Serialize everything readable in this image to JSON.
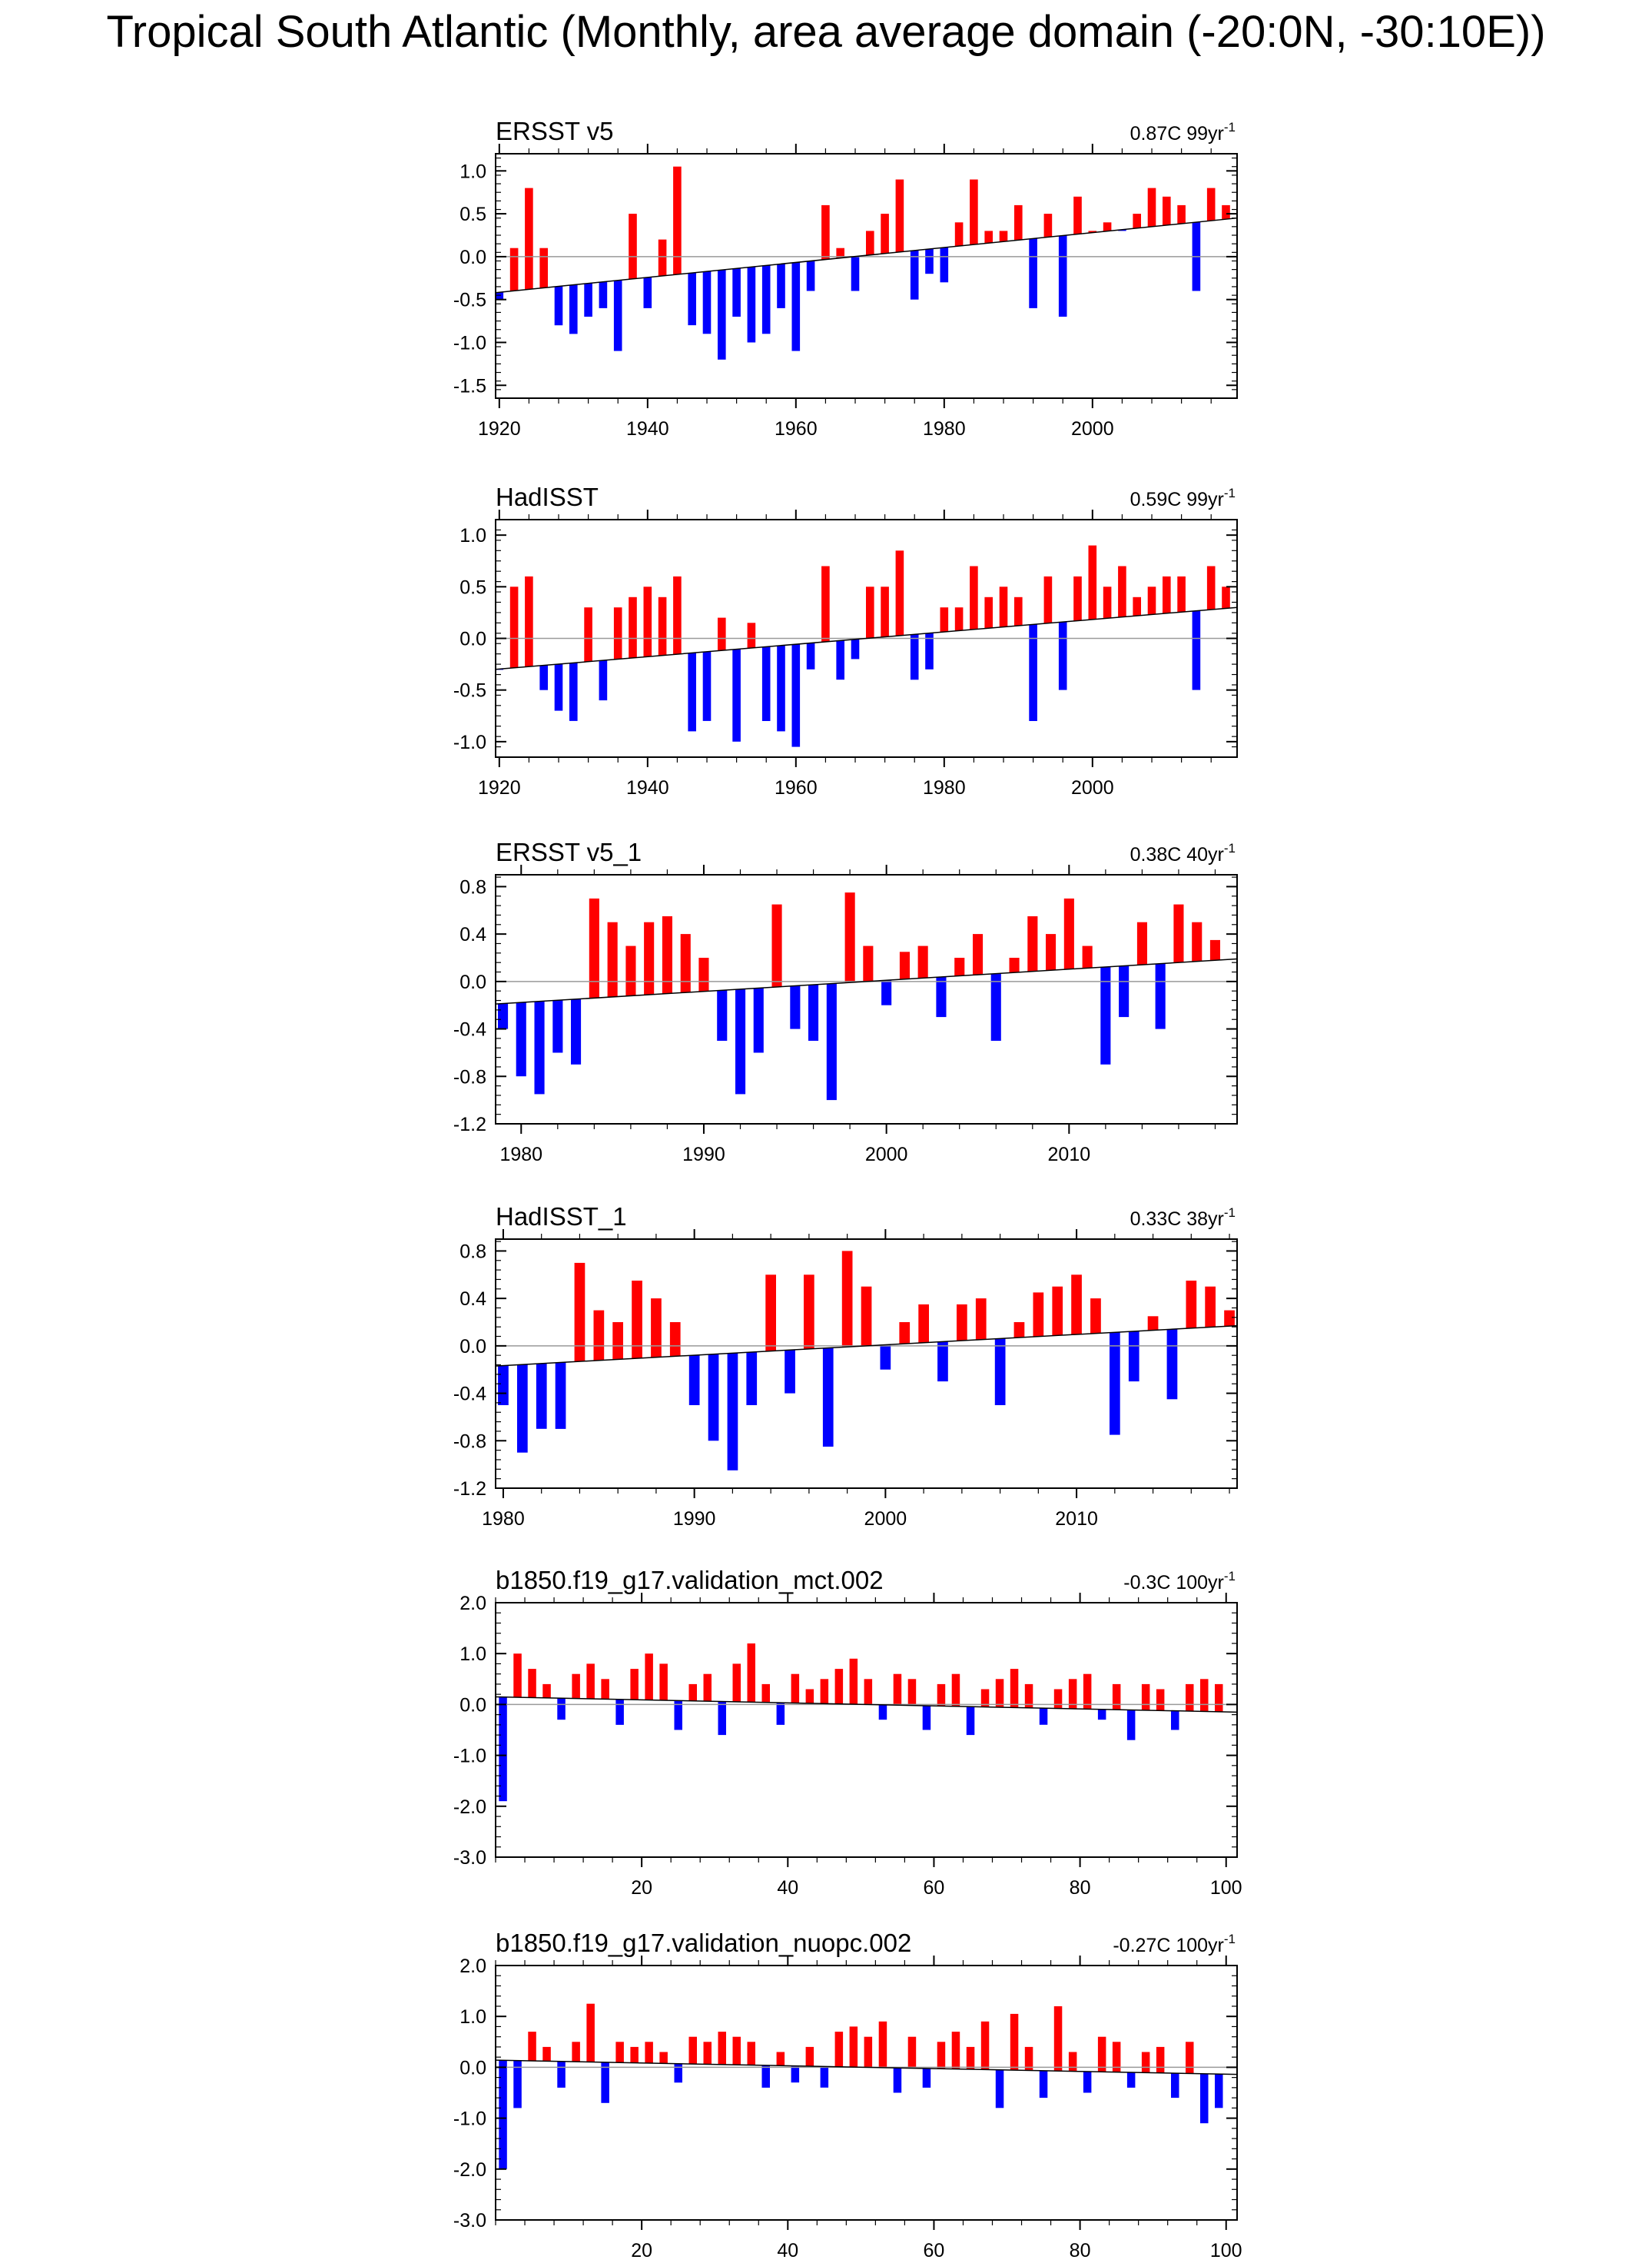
{
  "title": "Tropical South Atlantic (Monthly, area average domain (-20:0N, -30:10E))",
  "colors": {
    "positive": "#ff0000",
    "negative": "#0000ff",
    "trend": "#000000",
    "zero_line": "#9a9a9a"
  },
  "chart_data": [
    {
      "type": "bar",
      "title": "ERSST v5",
      "trend_label": "0.87C 99yr",
      "trend_label_sup": "-1",
      "xlim": [
        1919.5,
        2019.5
      ],
      "ylim": [
        -1.65,
        1.2
      ],
      "xticks": [
        1920,
        1940,
        1960,
        1980,
        2000
      ],
      "xtick_labels": [
        "1920",
        "1940",
        "1960",
        "1980",
        "2000"
      ],
      "yticks": [
        1.0,
        0.5,
        0.0,
        -0.5,
        -1.0,
        -1.5
      ],
      "ytick_labels": [
        "1.0",
        "0.5",
        "0.0",
        "-0.5",
        "-1.0",
        "-1.5"
      ],
      "trend_line": {
        "start": -0.42,
        "end": 0.45
      },
      "x": [
        1920,
        1922,
        1924,
        1926,
        1928,
        1930,
        1932,
        1934,
        1936,
        1938,
        1940,
        1942,
        1944,
        1946,
        1948,
        1950,
        1952,
        1954,
        1956,
        1958,
        1960,
        1962,
        1964,
        1966,
        1968,
        1970,
        1972,
        1974,
        1976,
        1978,
        1980,
        1982,
        1984,
        1986,
        1988,
        1990,
        1992,
        1994,
        1996,
        1998,
        2000,
        2002,
        2004,
        2006,
        2008,
        2010,
        2012,
        2014,
        2016,
        2018
      ],
      "values": [
        -0.5,
        0.1,
        0.8,
        0.1,
        -0.8,
        -0.9,
        -0.7,
        -0.6,
        -1.1,
        0.5,
        -0.6,
        0.2,
        1.05,
        -0.8,
        -0.9,
        -1.2,
        -0.7,
        -1.0,
        -0.9,
        -0.6,
        -1.1,
        -0.4,
        0.6,
        0.1,
        -0.4,
        0.3,
        0.5,
        0.9,
        -0.5,
        -0.2,
        -0.3,
        0.4,
        0.9,
        0.3,
        0.3,
        0.6,
        -0.6,
        0.5,
        -0.7,
        0.7,
        0.3,
        0.4,
        0.3,
        0.5,
        0.8,
        0.7,
        0.6,
        -0.4,
        0.8,
        0.6
      ]
    },
    {
      "type": "bar",
      "title": "HadISST",
      "trend_label": "0.59C 99yr",
      "trend_label_sup": "-1",
      "xlim": [
        1919.5,
        2019.5
      ],
      "ylim": [
        -1.15,
        1.15
      ],
      "xticks": [
        1920,
        1940,
        1960,
        1980,
        2000
      ],
      "xtick_labels": [
        "1920",
        "1940",
        "1960",
        "1980",
        "2000"
      ],
      "yticks": [
        1.0,
        0.5,
        0.0,
        -0.5,
        -1.0
      ],
      "ytick_labels": [
        "1.0",
        "0.5",
        "0.0",
        "-0.5",
        "-1.0"
      ],
      "trend_line": {
        "start": -0.3,
        "end": 0.3
      },
      "x": [
        1920,
        1922,
        1924,
        1926,
        1928,
        1930,
        1932,
        1934,
        1936,
        1938,
        1940,
        1942,
        1944,
        1946,
        1948,
        1950,
        1952,
        1954,
        1956,
        1958,
        1960,
        1962,
        1964,
        1966,
        1968,
        1970,
        1972,
        1974,
        1976,
        1978,
        1980,
        1982,
        1984,
        1986,
        1988,
        1990,
        1992,
        1994,
        1996,
        1998,
        2000,
        2002,
        2004,
        2006,
        2008,
        2010,
        2012,
        2014,
        2016,
        2018
      ],
      "values": [
        -0.3,
        0.5,
        0.6,
        -0.5,
        -0.7,
        -0.8,
        0.3,
        -0.6,
        0.3,
        0.4,
        0.5,
        0.4,
        0.6,
        -0.9,
        -0.8,
        0.2,
        -1.0,
        0.15,
        -0.8,
        -0.9,
        -1.05,
        -0.3,
        0.7,
        -0.4,
        -0.2,
        0.5,
        0.5,
        0.85,
        -0.4,
        -0.3,
        0.3,
        0.3,
        0.7,
        0.4,
        0.5,
        0.4,
        -0.8,
        0.6,
        -0.5,
        0.6,
        0.9,
        0.5,
        0.7,
        0.4,
        0.5,
        0.6,
        0.6,
        -0.5,
        0.7,
        0.5
      ]
    },
    {
      "type": "bar",
      "title": "ERSST v5_1",
      "trend_label": "0.38C 40yr",
      "trend_label_sup": "-1",
      "xlim": [
        1978.6,
        2019.2
      ],
      "ylim": [
        -1.2,
        0.9
      ],
      "xticks": [
        1980,
        1990,
        2000,
        2010
      ],
      "xtick_labels": [
        "1980",
        "1990",
        "2000",
        "2010"
      ],
      "yticks": [
        0.8,
        0.4,
        0.0,
        -0.4,
        -0.8,
        -1.2
      ],
      "ytick_labels": [
        "0.8",
        "0.4",
        "0.0",
        "-0.4",
        "-0.8",
        "-1.2"
      ],
      "trend_line": {
        "start": -0.19,
        "end": 0.19
      },
      "x": [
        1979,
        1980,
        1981,
        1982,
        1983,
        1984,
        1985,
        1986,
        1987,
        1988,
        1989,
        1990,
        1991,
        1992,
        1993,
        1994,
        1995,
        1996,
        1997,
        1998,
        1999,
        2000,
        2001,
        2002,
        2003,
        2004,
        2005,
        2006,
        2007,
        2008,
        2009,
        2010,
        2011,
        2012,
        2013,
        2014,
        2015,
        2016,
        2017,
        2018
      ],
      "values": [
        -0.4,
        -0.8,
        -0.95,
        -0.6,
        -0.7,
        0.7,
        0.5,
        0.3,
        0.5,
        0.55,
        0.4,
        0.2,
        -0.5,
        -0.95,
        -0.6,
        0.65,
        -0.4,
        -0.5,
        -1.0,
        0.75,
        0.3,
        -0.2,
        0.25,
        0.3,
        -0.3,
        0.2,
        0.4,
        -0.5,
        0.2,
        0.55,
        0.4,
        0.7,
        0.3,
        -0.7,
        -0.3,
        0.5,
        -0.4,
        0.65,
        0.5,
        0.35
      ]
    },
    {
      "type": "bar",
      "title": "HadISST_1",
      "trend_label": "0.33C 38yr",
      "trend_label_sup": "-1",
      "xlim": [
        1979.6,
        2018.4
      ],
      "ylim": [
        -1.2,
        0.9
      ],
      "xticks": [
        1980,
        1990,
        2000,
        2010
      ],
      "xtick_labels": [
        "1980",
        "1990",
        "2000",
        "2010"
      ],
      "yticks": [
        0.8,
        0.4,
        0.0,
        -0.4,
        -0.8,
        -1.2
      ],
      "ytick_labels": [
        "0.8",
        "0.4",
        "0.0",
        "-0.4",
        "-0.8",
        "-1.2"
      ],
      "trend_line": {
        "start": -0.17,
        "end": 0.17
      },
      "x": [
        1980,
        1981,
        1982,
        1983,
        1984,
        1985,
        1986,
        1987,
        1988,
        1989,
        1990,
        1991,
        1992,
        1993,
        1994,
        1995,
        1996,
        1997,
        1998,
        1999,
        2000,
        2001,
        2002,
        2003,
        2004,
        2005,
        2006,
        2007,
        2008,
        2009,
        2010,
        2011,
        2012,
        2013,
        2014,
        2015,
        2016,
        2017,
        2018
      ],
      "values": [
        -0.5,
        -0.9,
        -0.7,
        -0.7,
        0.7,
        0.3,
        0.2,
        0.55,
        0.4,
        0.2,
        -0.5,
        -0.8,
        -1.05,
        -0.5,
        0.6,
        -0.4,
        0.6,
        -0.85,
        0.8,
        0.5,
        -0.2,
        0.2,
        0.35,
        -0.3,
        0.35,
        0.4,
        -0.5,
        0.2,
        0.45,
        0.5,
        0.6,
        0.4,
        -0.75,
        -0.3,
        0.25,
        -0.45,
        0.55,
        0.5,
        0.3
      ]
    },
    {
      "type": "bar",
      "title": "b1850.f19_g17.validation_mct.002",
      "trend_label": "-0.3C 100yr",
      "trend_label_sup": "-1",
      "xlim": [
        0,
        101.5
      ],
      "ylim": [
        -3.0,
        2.0
      ],
      "xticks": [
        20,
        40,
        60,
        80,
        100
      ],
      "xtick_labels": [
        "20",
        "40",
        "60",
        "80",
        "100"
      ],
      "yticks": [
        2.0,
        1.0,
        0.0,
        -1.0,
        -2.0,
        -3.0
      ],
      "ytick_labels": [
        "2.0",
        "1.0",
        "0.0",
        "-1.0",
        "-2.0",
        "-3.0"
      ],
      "trend_line": {
        "start": 0.15,
        "end": -0.15
      },
      "x": [
        1,
        3,
        5,
        7,
        9,
        11,
        13,
        15,
        17,
        19,
        21,
        23,
        25,
        27,
        29,
        31,
        33,
        35,
        37,
        39,
        41,
        43,
        45,
        47,
        49,
        51,
        53,
        55,
        57,
        59,
        61,
        63,
        65,
        67,
        69,
        71,
        73,
        75,
        77,
        79,
        81,
        83,
        85,
        87,
        89,
        91,
        93,
        95,
        97,
        99
      ],
      "values": [
        -1.9,
        1.0,
        0.7,
        0.4,
        -0.3,
        0.6,
        0.8,
        0.5,
        -0.4,
        0.7,
        1.0,
        0.8,
        -0.5,
        0.4,
        0.6,
        -0.6,
        0.8,
        1.2,
        0.4,
        -0.4,
        0.6,
        0.3,
        0.5,
        0.7,
        0.9,
        0.5,
        -0.3,
        0.6,
        0.5,
        -0.5,
        0.4,
        0.6,
        -0.6,
        0.3,
        0.5,
        0.7,
        0.4,
        -0.4,
        0.3,
        0.5,
        0.6,
        -0.3,
        0.4,
        -0.7,
        0.4,
        0.3,
        -0.5,
        0.4,
        0.5,
        0.4
      ]
    },
    {
      "type": "bar",
      "title": "b1850.f19_g17.validation_nuopc.002",
      "trend_label": "-0.27C 100yr",
      "trend_label_sup": "-1",
      "xlim": [
        0,
        101.5
      ],
      "ylim": [
        -3.0,
        2.0
      ],
      "xticks": [
        20,
        40,
        60,
        80,
        100
      ],
      "xtick_labels": [
        "20",
        "40",
        "60",
        "80",
        "100"
      ],
      "yticks": [
        2.0,
        1.0,
        0.0,
        -1.0,
        -2.0,
        -3.0
      ],
      "ytick_labels": [
        "2.0",
        "1.0",
        "0.0",
        "-1.0",
        "-2.0",
        "-3.0"
      ],
      "trend_line": {
        "start": 0.14,
        "end": -0.14
      },
      "x": [
        1,
        3,
        5,
        7,
        9,
        11,
        13,
        15,
        17,
        19,
        21,
        23,
        25,
        27,
        29,
        31,
        33,
        35,
        37,
        39,
        41,
        43,
        45,
        47,
        49,
        51,
        53,
        55,
        57,
        59,
        61,
        63,
        65,
        67,
        69,
        71,
        73,
        75,
        77,
        79,
        81,
        83,
        85,
        87,
        89,
        91,
        93,
        95,
        97,
        99
      ],
      "values": [
        -2.0,
        -0.8,
        0.7,
        0.4,
        -0.4,
        0.5,
        1.25,
        -0.7,
        0.5,
        0.4,
        0.5,
        0.3,
        -0.3,
        0.6,
        0.5,
        0.7,
        0.6,
        0.5,
        -0.4,
        0.3,
        -0.3,
        0.4,
        -0.4,
        0.7,
        0.8,
        0.6,
        0.9,
        -0.5,
        0.6,
        -0.4,
        0.5,
        0.7,
        0.4,
        0.9,
        -0.8,
        1.05,
        0.4,
        -0.6,
        1.2,
        0.3,
        -0.5,
        0.6,
        0.5,
        -0.4,
        0.3,
        0.4,
        -0.6,
        0.5,
        -1.1,
        -0.8
      ]
    }
  ]
}
